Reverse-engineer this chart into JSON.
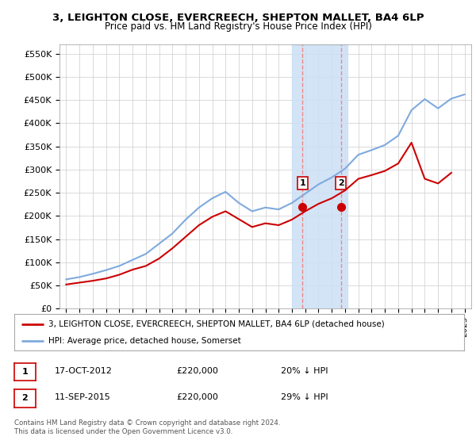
{
  "title_line1": "3, LEIGHTON CLOSE, EVERCREECH, SHEPTON MALLET, BA4 6LP",
  "title_line2": "Price paid vs. HM Land Registry's House Price Index (HPI)",
  "ylim": [
    0,
    570000
  ],
  "yticks": [
    0,
    50000,
    100000,
    150000,
    200000,
    250000,
    300000,
    350000,
    400000,
    450000,
    500000,
    550000
  ],
  "ytick_labels": [
    "£0",
    "£50K",
    "£100K",
    "£150K",
    "£200K",
    "£250K",
    "£300K",
    "£350K",
    "£400K",
    "£450K",
    "£500K",
    "£550K"
  ],
  "hpi_color": "#7faadd",
  "price_color": "#cc0000",
  "marker_color": "#cc0000",
  "sale1_x": 2012.79,
  "sale1_y": 220000,
  "sale2_x": 2015.69,
  "sale2_y": 220000,
  "sale1_label": "1",
  "sale2_label": "2",
  "shade_x1": 2012.0,
  "shade_x2": 2016.2,
  "legend_line1": "3, LEIGHTON CLOSE, EVERCREECH, SHEPTON MALLET, BA4 6LP (detached house)",
  "legend_line2": "HPI: Average price, detached house, Somerset",
  "table_row1": [
    "1",
    "17-OCT-2012",
    "£220,000",
    "20% ↓ HPI"
  ],
  "table_row2": [
    "2",
    "11-SEP-2015",
    "£220,000",
    "29% ↓ HPI"
  ],
  "footnote": "Contains HM Land Registry data © Crown copyright and database right 2024.\nThis data is licensed under the Open Government Licence v3.0.",
  "hpi_years": [
    1995,
    1996,
    1997,
    1998,
    1999,
    2000,
    2001,
    2002,
    2003,
    2004,
    2005,
    2006,
    2007,
    2008,
    2009,
    2010,
    2011,
    2012,
    2013,
    2014,
    2015,
    2016,
    2017,
    2018,
    2019,
    2020,
    2021,
    2022,
    2023,
    2024,
    2025
  ],
  "hpi_values": [
    63000,
    68000,
    75000,
    83000,
    92000,
    105000,
    118000,
    140000,
    162000,
    192000,
    218000,
    238000,
    252000,
    228000,
    210000,
    218000,
    214000,
    228000,
    248000,
    268000,
    283000,
    302000,
    332000,
    342000,
    353000,
    373000,
    428000,
    452000,
    432000,
    453000,
    462000
  ],
  "price_years": [
    1995,
    1996,
    1997,
    1998,
    1999,
    2000,
    2001,
    2002,
    2003,
    2004,
    2005,
    2006,
    2007,
    2008,
    2009,
    2010,
    2011,
    2012,
    2013,
    2014,
    2015,
    2016,
    2017,
    2018,
    2019,
    2020,
    2021,
    2022,
    2023,
    2024
  ],
  "price_values": [
    52000,
    56000,
    60000,
    65000,
    73000,
    84000,
    92000,
    108000,
    130000,
    155000,
    180000,
    198000,
    210000,
    193000,
    176000,
    184000,
    180000,
    192000,
    210000,
    226000,
    238000,
    255000,
    280000,
    288000,
    297000,
    313000,
    358000,
    280000,
    270000,
    293000
  ],
  "xtick_years": [
    1995,
    1996,
    1997,
    1998,
    1999,
    2000,
    2001,
    2002,
    2003,
    2004,
    2005,
    2006,
    2007,
    2008,
    2009,
    2010,
    2011,
    2012,
    2013,
    2014,
    2015,
    2016,
    2017,
    2018,
    2019,
    2020,
    2021,
    2022,
    2023,
    2024,
    2025
  ]
}
